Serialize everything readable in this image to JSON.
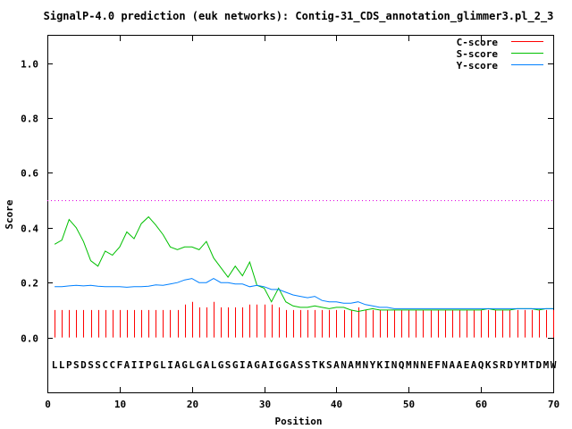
{
  "chart_data": {
    "type": "line",
    "title": "SignalP-4.0 prediction (euk networks): Contig-31_CDS_annotation_glimmer3.pl_2_3",
    "xlabel": "Position",
    "ylabel": "Score",
    "xlim": [
      0,
      70
    ],
    "ylim": [
      -0.2,
      1.1
    ],
    "x_ticks": [
      0,
      10,
      20,
      30,
      40,
      50,
      60,
      70
    ],
    "y_ticks": [
      0.0,
      0.2,
      0.4,
      0.6,
      0.8,
      1.0
    ],
    "x_tick_labels": [
      "0",
      "10",
      "20",
      "30",
      "40",
      "50",
      "60",
      "70"
    ],
    "y_tick_labels": [
      "0.0",
      "0.2",
      "0.4",
      "0.6",
      "0.8",
      "1.0"
    ],
    "threshold": 0.5,
    "legend_position": "top-right",
    "sequence": "LLPSDSSCCFAIIPGLIAGLGALGSGIAGAIGGASSTKSANAMNYKINQMNNEFNAAEAQKSRDYMTDMW",
    "x": [
      1,
      2,
      3,
      4,
      5,
      6,
      7,
      8,
      9,
      10,
      11,
      12,
      13,
      14,
      15,
      16,
      17,
      18,
      19,
      20,
      21,
      22,
      23,
      24,
      25,
      26,
      27,
      28,
      29,
      30,
      31,
      32,
      33,
      34,
      35,
      36,
      37,
      38,
      39,
      40,
      41,
      42,
      43,
      44,
      45,
      46,
      47,
      48,
      49,
      50,
      51,
      52,
      53,
      54,
      55,
      56,
      57,
      58,
      59,
      60,
      61,
      62,
      63,
      64,
      65,
      66,
      67,
      68,
      69,
      70
    ],
    "series": [
      {
        "name": "C-score",
        "color": "#ff0000",
        "style": "impulse",
        "values": [
          0.1,
          0.1,
          0.1,
          0.1,
          0.1,
          0.1,
          0.1,
          0.1,
          0.1,
          0.1,
          0.1,
          0.1,
          0.1,
          0.1,
          0.1,
          0.1,
          0.1,
          0.1,
          0.12,
          0.13,
          0.11,
          0.11,
          0.13,
          0.11,
          0.11,
          0.11,
          0.11,
          0.12,
          0.12,
          0.12,
          0.12,
          0.11,
          0.1,
          0.1,
          0.1,
          0.1,
          0.1,
          0.1,
          0.1,
          0.1,
          0.1,
          0.1,
          0.11,
          0.1,
          0.1,
          0.1,
          0.1,
          0.1,
          0.1,
          0.1,
          0.1,
          0.1,
          0.1,
          0.1,
          0.1,
          0.1,
          0.1,
          0.1,
          0.1,
          0.1,
          0.1,
          0.1,
          0.1,
          0.1,
          0.1,
          0.1,
          0.1,
          0.1,
          0.1,
          0.1
        ]
      },
      {
        "name": "S-score",
        "color": "#00c000",
        "style": "line",
        "values": [
          0.34,
          0.355,
          0.43,
          0.4,
          0.35,
          0.28,
          0.26,
          0.315,
          0.3,
          0.33,
          0.385,
          0.36,
          0.415,
          0.44,
          0.41,
          0.375,
          0.33,
          0.32,
          0.33,
          0.33,
          0.32,
          0.35,
          0.29,
          0.255,
          0.22,
          0.26,
          0.225,
          0.275,
          0.19,
          0.18,
          0.13,
          0.18,
          0.13,
          0.115,
          0.11,
          0.11,
          0.115,
          0.11,
          0.105,
          0.11,
          0.11,
          0.1,
          0.095,
          0.1,
          0.105,
          0.1,
          0.1,
          0.1,
          0.1,
          0.1,
          0.1,
          0.1,
          0.1,
          0.1,
          0.1,
          0.1,
          0.1,
          0.1,
          0.1,
          0.1,
          0.105,
          0.1,
          0.1,
          0.1,
          0.105,
          0.105,
          0.105,
          0.1,
          0.105,
          0.105
        ]
      },
      {
        "name": "Y-score",
        "color": "#0080ff",
        "style": "line",
        "values": [
          0.185,
          0.185,
          0.188,
          0.19,
          0.188,
          0.19,
          0.187,
          0.185,
          0.185,
          0.185,
          0.183,
          0.185,
          0.185,
          0.187,
          0.192,
          0.19,
          0.195,
          0.2,
          0.21,
          0.215,
          0.2,
          0.2,
          0.215,
          0.2,
          0.2,
          0.195,
          0.195,
          0.185,
          0.19,
          0.185,
          0.175,
          0.175,
          0.165,
          0.155,
          0.15,
          0.145,
          0.15,
          0.135,
          0.13,
          0.13,
          0.125,
          0.125,
          0.13,
          0.12,
          0.115,
          0.11,
          0.11,
          0.105,
          0.105,
          0.105,
          0.105,
          0.105,
          0.105,
          0.105,
          0.105,
          0.105,
          0.105,
          0.105,
          0.105,
          0.105,
          0.105,
          0.105,
          0.105,
          0.105,
          0.105,
          0.105,
          0.105,
          0.105,
          0.105,
          0.105
        ]
      }
    ]
  }
}
